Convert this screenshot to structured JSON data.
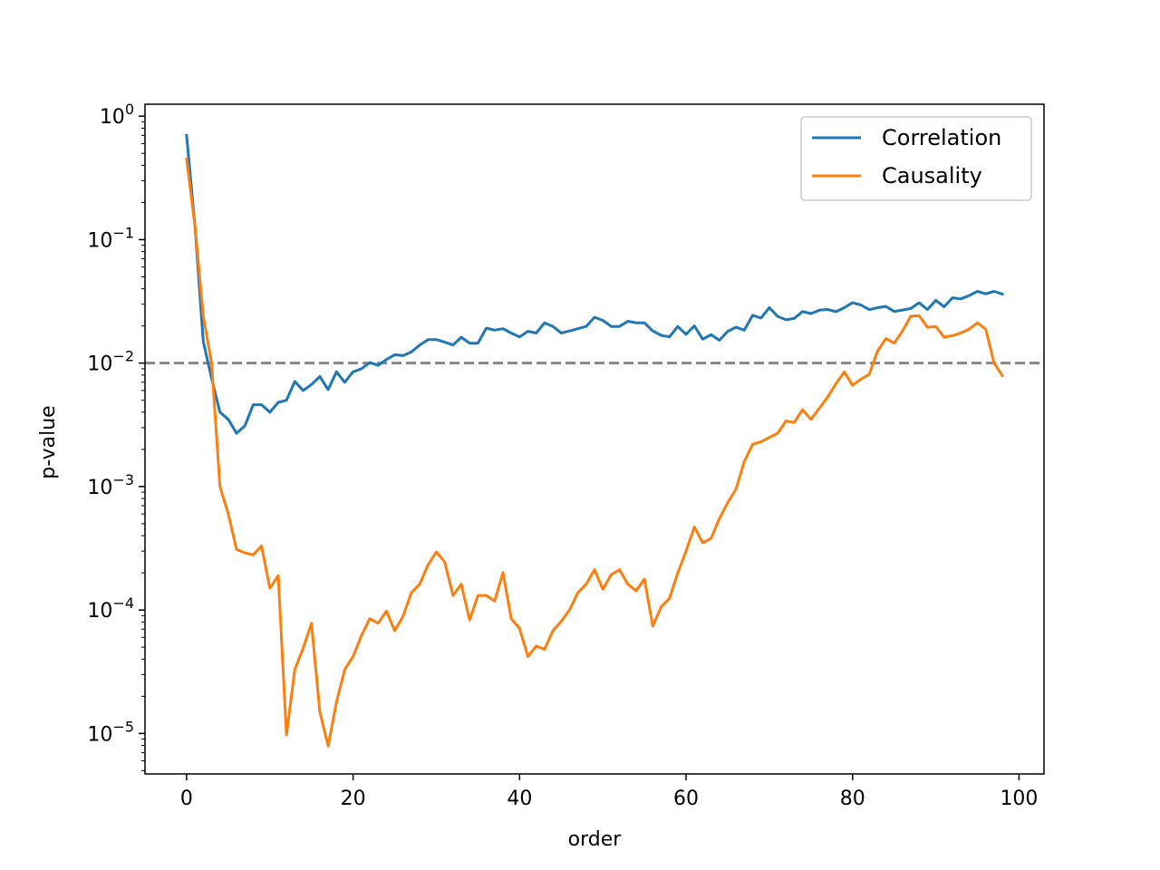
{
  "chart_data": {
    "type": "line",
    "title": "",
    "xlabel": "order",
    "ylabel": "p-value",
    "xlim": [
      -5,
      103
    ],
    "ylim": [
      4.7e-06,
      1.25
    ],
    "yscale": "log",
    "x_ticks": [
      0,
      20,
      40,
      60,
      80,
      100
    ],
    "x_tick_labels": [
      "0",
      "20",
      "40",
      "60",
      "80",
      "100"
    ],
    "y_tick_exponents": [
      0,
      -1,
      -2,
      -3,
      -4,
      -5
    ],
    "y_tick_base": "10",
    "legend_position": "top-right",
    "reference_line": {
      "y": 0.01,
      "color": "#888888",
      "style": "dashed"
    },
    "x": [
      0,
      1,
      2,
      3,
      4,
      5,
      6,
      7,
      8,
      9,
      10,
      11,
      12,
      13,
      14,
      15,
      16,
      17,
      18,
      19,
      20,
      21,
      22,
      23,
      24,
      25,
      26,
      27,
      28,
      29,
      30,
      31,
      32,
      33,
      34,
      35,
      36,
      37,
      38,
      39,
      40,
      41,
      42,
      43,
      44,
      45,
      46,
      47,
      48,
      49,
      50,
      51,
      52,
      53,
      54,
      55,
      56,
      57,
      58,
      59,
      60,
      61,
      62,
      63,
      64,
      65,
      66,
      67,
      68,
      69,
      70,
      71,
      72,
      73,
      74,
      75,
      76,
      77,
      78,
      79,
      80,
      81,
      82,
      83,
      84,
      85,
      86,
      87,
      88,
      89,
      90,
      91,
      92,
      93,
      94,
      95,
      96,
      97,
      98
    ],
    "series": [
      {
        "name": "Correlation",
        "color": "#1f77b4",
        "values": [
          0.7,
          0.13,
          0.015,
          0.0075,
          0.004,
          0.0035,
          0.0027,
          0.0031,
          0.0046,
          0.0046,
          0.004,
          0.0048,
          0.005,
          0.0071,
          0.006,
          0.0067,
          0.0078,
          0.0061,
          0.0085,
          0.007,
          0.0085,
          0.009,
          0.0101,
          0.0096,
          0.0107,
          0.0117,
          0.0115,
          0.0123,
          0.014,
          0.0155,
          0.0155,
          0.0148,
          0.014,
          0.0162,
          0.0145,
          0.0145,
          0.0192,
          0.0185,
          0.019,
          0.0175,
          0.0163,
          0.0181,
          0.0175,
          0.0212,
          0.0198,
          0.0175,
          0.0182,
          0.019,
          0.0198,
          0.0235,
          0.0222,
          0.0198,
          0.0198,
          0.0218,
          0.0212,
          0.0212,
          0.0182,
          0.0168,
          0.0163,
          0.0198,
          0.0171,
          0.02,
          0.0156,
          0.017,
          0.0153,
          0.0181,
          0.0195,
          0.0185,
          0.0244,
          0.0232,
          0.0281,
          0.0239,
          0.0224,
          0.023,
          0.0262,
          0.0252,
          0.0268,
          0.0272,
          0.0261,
          0.0281,
          0.0308,
          0.0296,
          0.0271,
          0.0281,
          0.0288,
          0.0262,
          0.0269,
          0.0277,
          0.0308,
          0.0272,
          0.0322,
          0.0286,
          0.0338,
          0.0331,
          0.0352,
          0.0381,
          0.0364,
          0.0381,
          0.0362
        ]
      },
      {
        "name": "Causality",
        "color": "#ff7f0e",
        "values": [
          0.45,
          0.13,
          0.024,
          0.01,
          0.001,
          0.0006,
          0.00031,
          0.00029,
          0.00028,
          0.00033,
          0.00015,
          0.00019,
          9.7e-06,
          3.3e-05,
          4.9e-05,
          7.8e-05,
          1.5e-05,
          7.9e-06,
          1.8e-05,
          3.3e-05,
          4.2e-05,
          6.2e-05,
          8.5e-05,
          7.8e-05,
          9.8e-05,
          6.8e-05,
          8.9e-05,
          0.000138,
          0.000162,
          0.000232,
          0.000295,
          0.000245,
          0.000131,
          0.000162,
          8.3e-05,
          0.000131,
          0.000131,
          0.000118,
          0.000201,
          8.5e-05,
          7.1e-05,
          4.2e-05,
          5.1e-05,
          4.8e-05,
          6.8e-05,
          8.1e-05,
          0.0001,
          0.000138,
          0.000162,
          0.000212,
          0.000147,
          0.000193,
          0.000212,
          0.000162,
          0.000143,
          0.000178,
          7.4e-05,
          0.000106,
          0.000124,
          0.0002,
          0.0003,
          0.00047,
          0.00035,
          0.00038,
          0.00055,
          0.00074,
          0.00095,
          0.0016,
          0.0022,
          0.0023,
          0.0025,
          0.0027,
          0.0034,
          0.0033,
          0.0042,
          0.0035,
          0.0043,
          0.0053,
          0.0068,
          0.0085,
          0.0066,
          0.0074,
          0.0081,
          0.0125,
          0.0158,
          0.0145,
          0.0182,
          0.024,
          0.0242,
          0.0195,
          0.0198,
          0.0162,
          0.0167,
          0.0175,
          0.0188,
          0.0212,
          0.0188,
          0.01,
          0.0079
        ]
      }
    ]
  }
}
